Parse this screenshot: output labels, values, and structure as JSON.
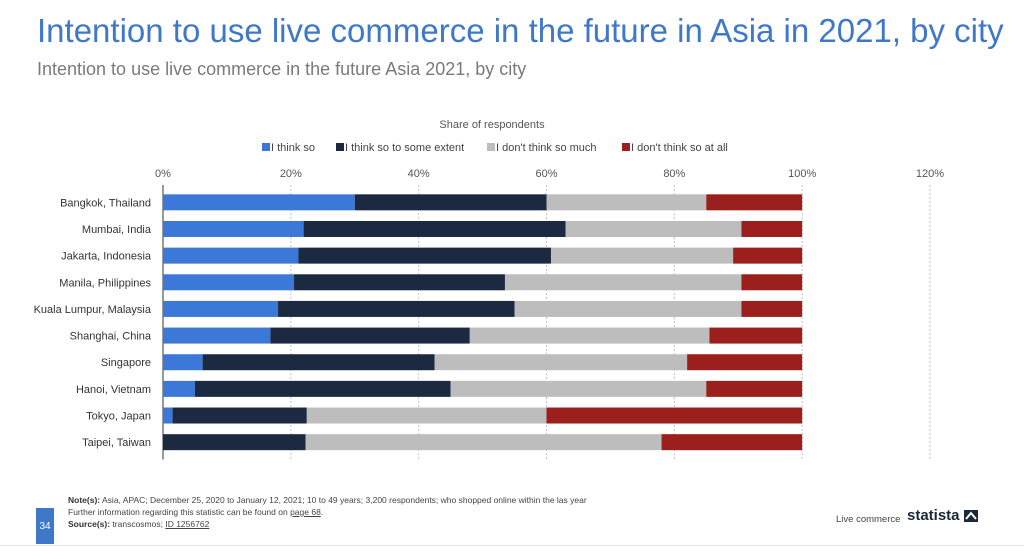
{
  "header": {
    "title": "Intention to use live commerce in the future in Asia in 2021, by city",
    "subtitle": "Intention to use live commerce in the future Asia 2021, by city"
  },
  "chart_data": {
    "type": "bar",
    "orientation": "horizontal",
    "stacked": true,
    "title": "",
    "axis_title": "Share of respondents",
    "xlim": [
      0,
      120
    ],
    "x_ticks": [
      "0%",
      "20%",
      "40%",
      "60%",
      "80%",
      "100%",
      "120%"
    ],
    "grid": "dashed vertical",
    "legend_position": "top",
    "categories": [
      "Bangkok, Thailand",
      "Mumbai, India",
      "Jakarta, Indonesia",
      "Manila, Philippines",
      "Kuala Lumpur, Malaysia",
      "Shanghai, China",
      "Singapore",
      "Hanoi, Vietnam",
      "Tokyo, Japan",
      "Taipei, Taiwan"
    ],
    "series": [
      {
        "name": "I think so",
        "color": "#3c78d8",
        "values": [
          30,
          22,
          21.2,
          20.5,
          18,
          16.8,
          6.2,
          5,
          1.5,
          0
        ]
      },
      {
        "name": "I think so to some extent",
        "color": "#1b2a41",
        "values": [
          30,
          41,
          39.5,
          33,
          37,
          31.2,
          36.3,
          40,
          21,
          22.3
        ]
      },
      {
        "name": "I don't think so much",
        "color": "#bdbdbd",
        "values": [
          25,
          27.5,
          28.5,
          37,
          35.5,
          37.5,
          39.5,
          40,
          37.5,
          55.7
        ]
      },
      {
        "name": "I don't think so at all",
        "color": "#9b1f1d",
        "values": [
          15,
          9.5,
          10.8,
          9.5,
          9.5,
          14.5,
          18,
          15,
          40,
          22
        ]
      }
    ]
  },
  "footer": {
    "page_number": "34",
    "notes_label": "Note(s):",
    "notes_text": "Asia, APAC; December 25, 2020 to January 12, 2021; 10 to 49 years; 3,200 respondents; who shopped online within the las year",
    "further_info_text": "Further information regarding this statistic can be found on",
    "further_info_link": "page 68",
    "further_info_end": ".",
    "source_label": "Source(s):",
    "source_text": "transcosmos;",
    "source_id": "ID 1256762",
    "topic": "Live commerce",
    "brand": "statista"
  }
}
